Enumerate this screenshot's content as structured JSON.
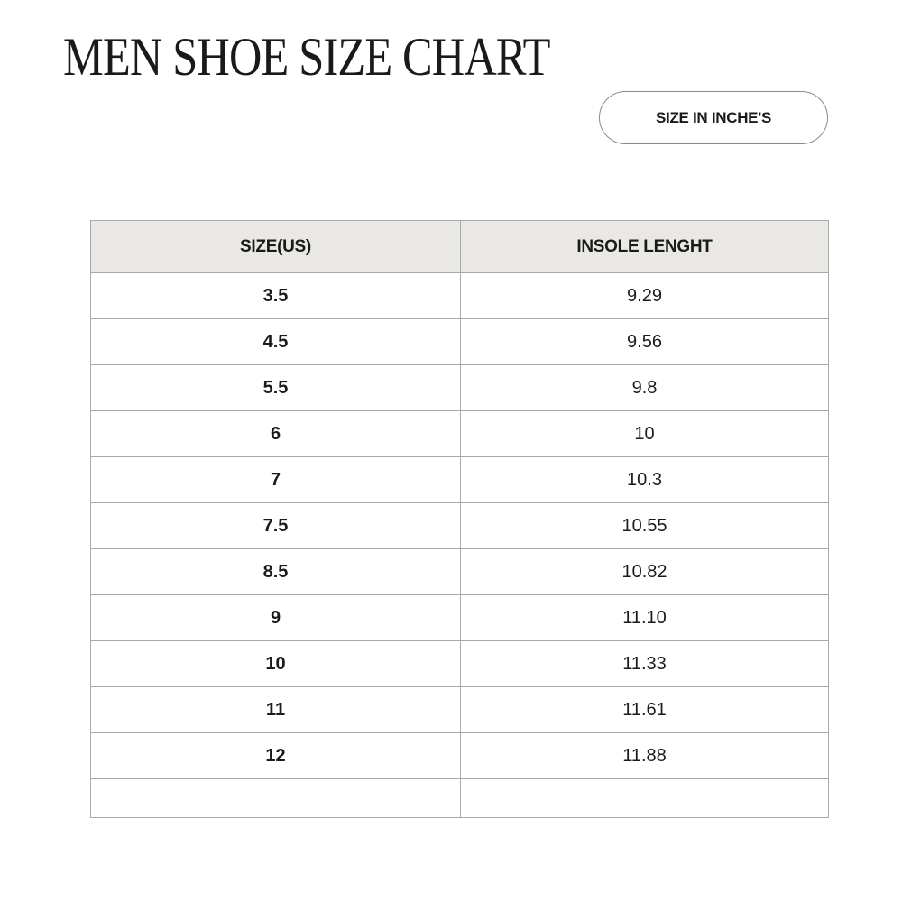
{
  "title": "MEN SHOE SIZE CHART",
  "unit_badge": "SIZE IN INCHE'S",
  "table": {
    "headers": [
      "SIZE(US)",
      "INSOLE LENGHT"
    ],
    "rows": [
      [
        "3.5",
        "9.29"
      ],
      [
        "4.5",
        "9.56"
      ],
      [
        "5.5",
        "9.8"
      ],
      [
        "6",
        "10"
      ],
      [
        "7",
        "10.3"
      ],
      [
        "7.5",
        "10.55"
      ],
      [
        "8.5",
        "10.82"
      ],
      [
        "9",
        "11.10"
      ],
      [
        "10",
        "11.33"
      ],
      [
        "11",
        "11.61"
      ],
      [
        "12",
        "11.88"
      ],
      [
        "",
        ""
      ]
    ]
  },
  "colors": {
    "header_bg": "#e9e8e4",
    "border": "#a9a9a9",
    "text": "#1a1a1a"
  }
}
